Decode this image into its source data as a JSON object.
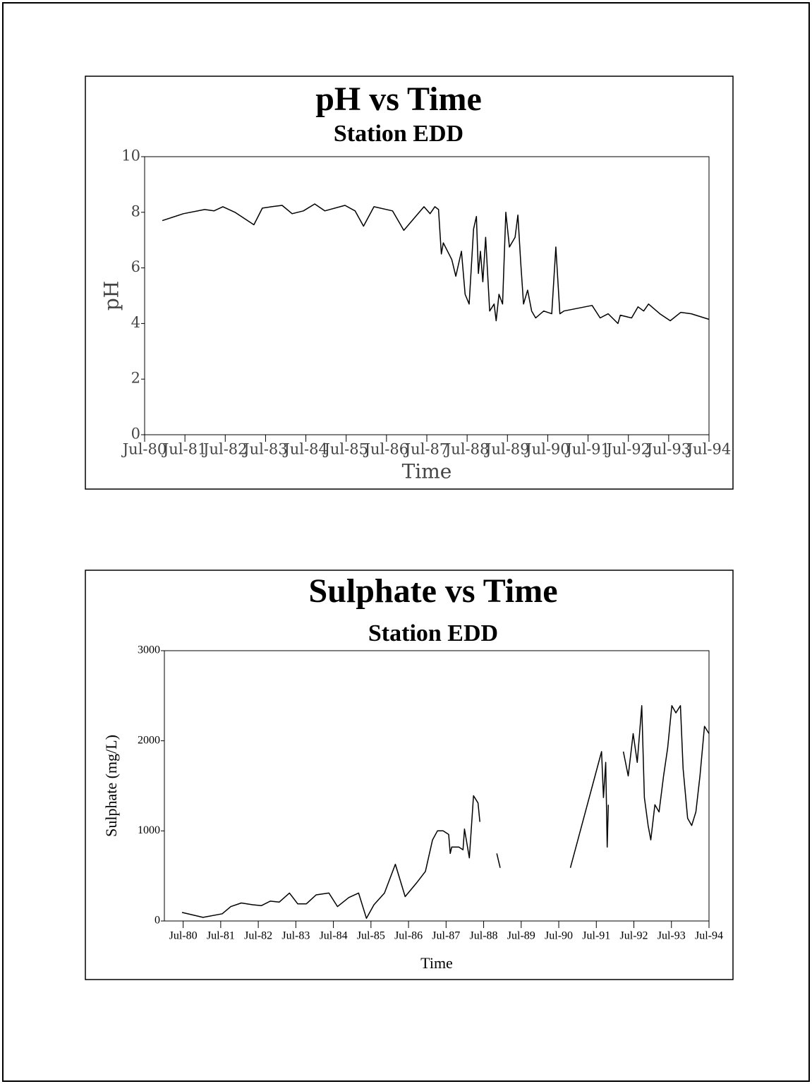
{
  "chart_data": [
    {
      "type": "line",
      "title": "pH vs Time",
      "subtitle": "Station EDD",
      "xlabel": "Time",
      "ylabel": "pH",
      "color": "#000000",
      "xlim": [
        1980.5,
        1994.5
      ],
      "xticks": [
        {
          "value": 1980.5,
          "label": "Jul-80"
        },
        {
          "value": 1981.5,
          "label": "Jul-81"
        },
        {
          "value": 1982.5,
          "label": "Jul-82"
        },
        {
          "value": 1983.5,
          "label": "Jul-83"
        },
        {
          "value": 1984.5,
          "label": "Jul-84"
        },
        {
          "value": 1985.5,
          "label": "Jul-85"
        },
        {
          "value": 1986.5,
          "label": "Jul-86"
        },
        {
          "value": 1987.5,
          "label": "Jul-87"
        },
        {
          "value": 1988.5,
          "label": "Jul-88"
        },
        {
          "value": 1989.5,
          "label": "Jul-89"
        },
        {
          "value": 1990.5,
          "label": "Jul-90"
        },
        {
          "value": 1991.5,
          "label": "Jul-91"
        },
        {
          "value": 1992.5,
          "label": "Jul-92"
        },
        {
          "value": 1993.5,
          "label": "Jul-93"
        },
        {
          "value": 1994.5,
          "label": "Jul-94"
        }
      ],
      "ylim": [
        0,
        10
      ],
      "yticks": [
        0,
        2,
        4,
        6,
        8,
        10
      ],
      "x": [
        1980.94,
        1981.46,
        1981.99,
        1982.22,
        1982.44,
        1982.74,
        1983.21,
        1983.42,
        1983.65,
        1983.91,
        1984.16,
        1984.44,
        1984.72,
        1984.97,
        1985.47,
        1985.72,
        1985.93,
        1986.19,
        1986.65,
        1986.93,
        1987.43,
        1987.58,
        1987.7,
        1987.79,
        1987.86,
        1987.91,
        1988.12,
        1988.22,
        1988.36,
        1988.45,
        1988.55,
        1988.66,
        1988.73,
        1988.78,
        1988.83,
        1988.89,
        1988.96,
        1989.06,
        1989.17,
        1989.22,
        1989.29,
        1989.38,
        1989.46,
        1989.55,
        1989.69,
        1989.76,
        1989.83,
        1989.9,
        1990.0,
        1990.1,
        1990.2,
        1990.4,
        1990.6,
        1990.7,
        1990.8,
        1990.9,
        1991.6,
        1991.8,
        1992.0,
        1992.24,
        1992.3,
        1992.58,
        1992.74,
        1992.88,
        1993.0,
        1993.28,
        1993.54,
        1993.8,
        1994.06,
        1994.5
      ],
      "values": [
        7.7,
        7.95,
        8.1,
        8.05,
        8.2,
        8.0,
        7.55,
        8.15,
        8.2,
        8.25,
        7.95,
        8.05,
        8.3,
        8.05,
        8.25,
        8.05,
        7.5,
        8.2,
        8.05,
        7.35,
        8.2,
        7.95,
        8.2,
        8.1,
        6.5,
        6.9,
        6.3,
        5.7,
        6.6,
        5.05,
        4.7,
        7.4,
        7.85,
        5.8,
        6.6,
        5.5,
        7.1,
        4.45,
        4.7,
        4.1,
        5.05,
        4.7,
        8.0,
        6.75,
        7.1,
        7.9,
        6.2,
        4.7,
        5.2,
        4.45,
        4.2,
        4.45,
        4.35,
        6.75,
        4.35,
        4.45,
        4.65,
        4.2,
        4.35,
        4.0,
        4.3,
        4.2,
        4.6,
        4.45,
        4.7,
        4.35,
        4.1,
        4.4,
        4.35,
        4.15
      ]
    },
    {
      "type": "line",
      "title": "Sulphate vs Time",
      "subtitle": "Station EDD",
      "xlabel": "Time",
      "ylabel": "Sulphate (mg/L)",
      "color": "#000000",
      "xlim": [
        1980.0,
        1994.5
      ],
      "xticks": [
        {
          "value": 1980.5,
          "label": "Jul-80"
        },
        {
          "value": 1981.5,
          "label": "Jul-81"
        },
        {
          "value": 1982.5,
          "label": "Jul-82"
        },
        {
          "value": 1983.5,
          "label": "Jul-83"
        },
        {
          "value": 1984.5,
          "label": "Jul-84"
        },
        {
          "value": 1985.5,
          "label": "Jul-85"
        },
        {
          "value": 1986.5,
          "label": "Jul-86"
        },
        {
          "value": 1987.5,
          "label": "Jul-87"
        },
        {
          "value": 1988.5,
          "label": "Jul-88"
        },
        {
          "value": 1989.5,
          "label": "Jul-89"
        },
        {
          "value": 1990.5,
          "label": "Jul-90"
        },
        {
          "value": 1991.5,
          "label": "Jul-91"
        },
        {
          "value": 1992.5,
          "label": "Jul-92"
        },
        {
          "value": 1993.5,
          "label": "Jul-93"
        },
        {
          "value": 1994.5,
          "label": "Jul-94"
        }
      ],
      "ylim": [
        0,
        3000
      ],
      "yticks": [
        0,
        1000,
        2000,
        3000
      ],
      "x": [
        1980.47,
        1981.03,
        1981.54,
        1981.77,
        1982.05,
        1982.35,
        1982.58,
        1982.82,
        1983.06,
        1983.33,
        1983.55,
        1983.78,
        1984.04,
        1984.38,
        1984.61,
        1984.91,
        1985.17,
        1985.38,
        1985.58,
        1985.86,
        1986.15,
        1986.41,
        1986.71,
        1986.95,
        1987.14,
        1987.27,
        1987.42,
        1987.57,
        1987.61,
        1987.65,
        1987.84,
        1987.95,
        1987.99,
        1988.12,
        1988.23,
        1988.35,
        1988.4,
        1988.6,
        1988.85,
        1988.94,
        1989.9,
        1990.81,
        1991.64,
        1991.69,
        1991.75,
        1991.79,
        1991.82,
        1991.86,
        1991.9,
        1992.05,
        1992.22,
        1992.35,
        1992.48,
        1992.59,
        1992.71,
        1992.78,
        1992.88,
        1992.95,
        1993.06,
        1993.17,
        1993.29,
        1993.4,
        1993.51,
        1993.62,
        1993.74,
        1993.81,
        1993.93,
        1994.04,
        1994.15,
        1994.26,
        1994.38,
        1994.5
      ],
      "values": [
        95,
        40,
        80,
        160,
        200,
        180,
        170,
        220,
        210,
        310,
        190,
        190,
        290,
        310,
        160,
        260,
        310,
        30,
        180,
        310,
        630,
        270,
        420,
        550,
        900,
        1000,
        1000,
        960,
        750,
        820,
        820,
        790,
        1020,
        700,
        1390,
        1310,
        1100,
        null,
        750,
        590,
        null,
        590,
        1880,
        1370,
        1760,
        820,
        1290,
        null,
        860,
        null,
        1880,
        1610,
        2080,
        1760,
        2390,
        1370,
        1060,
        900,
        1290,
        1210,
        1610,
        1920,
        2390,
        2310,
        2390,
        1690,
        1140,
        1060,
        1210,
        1610,
        2160,
        2080
      ]
    }
  ]
}
